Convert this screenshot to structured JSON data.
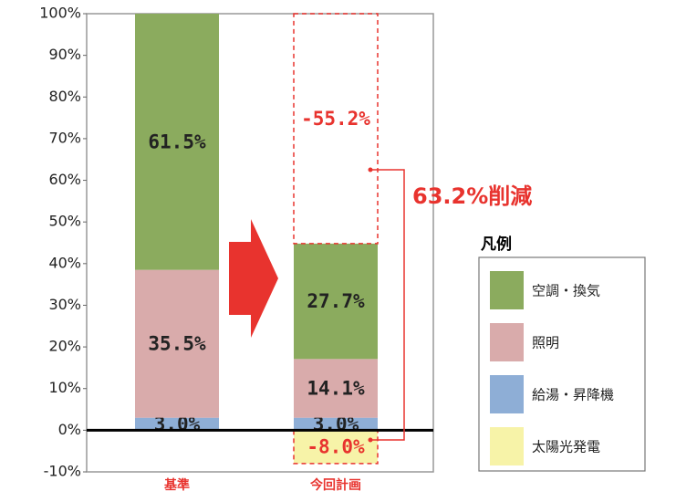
{
  "chart_data": {
    "type": "stacked-bar",
    "categories": [
      "基準",
      "今回計画"
    ],
    "series": [
      {
        "name": "給湯・昇降機",
        "color": "#8eaed6",
        "values": [
          3.0,
          3.0
        ],
        "value_labels": [
          "3.0%",
          "3.0%"
        ]
      },
      {
        "name": "照明",
        "color": "#d9abab",
        "values": [
          35.5,
          14.1
        ],
        "value_labels": [
          "35.5%",
          "14.1%"
        ]
      },
      {
        "name": "空調・換気",
        "color": "#8bab5e",
        "values": [
          61.5,
          27.7
        ],
        "value_labels": [
          "61.5%",
          "27.7%"
        ]
      },
      {
        "name": "太陽光発電",
        "color": "#f7f3a8",
        "values": [
          null,
          -8.0
        ],
        "value_labels": [
          null,
          "-8.0%"
        ]
      }
    ],
    "reduction": {
      "value": -55.2,
      "label": "-55.2%"
    },
    "annotation": "63.2%削減",
    "legend_title": "凡例",
    "ylim": [
      -10,
      100
    ],
    "yticks": [
      {
        "value": -10,
        "label": "-10%"
      },
      {
        "value": 0,
        "label": "0%"
      },
      {
        "value": 10,
        "label": "10%"
      },
      {
        "value": 20,
        "label": "20%"
      },
      {
        "value": 30,
        "label": "30%"
      },
      {
        "value": 40,
        "label": "40%"
      },
      {
        "value": 50,
        "label": "50%"
      },
      {
        "value": 60,
        "label": "60%"
      },
      {
        "value": 70,
        "label": "70%"
      },
      {
        "value": 80,
        "label": "80%"
      },
      {
        "value": 90,
        "label": "90%"
      },
      {
        "value": 100,
        "label": "100%"
      }
    ],
    "grid": false,
    "accent_color": "#e8332e"
  }
}
